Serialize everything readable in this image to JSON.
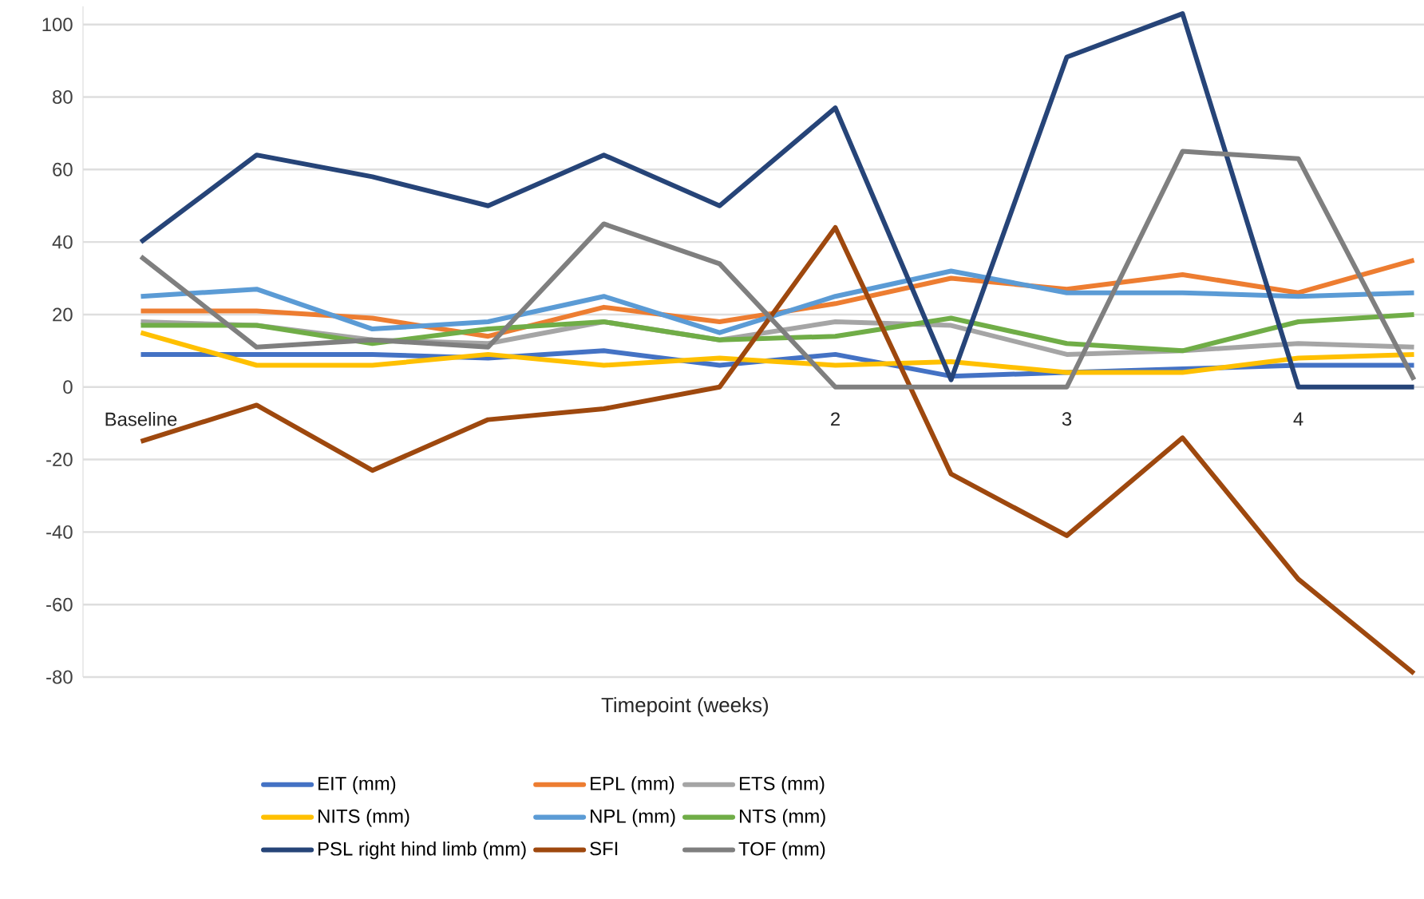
{
  "chart_data": {
    "type": "line",
    "xlabel": "Timepoint (weeks)",
    "categories": [
      "Baseline",
      null,
      null,
      null,
      null,
      null,
      "2",
      null,
      "3",
      null,
      "4",
      null
    ],
    "series": [
      {
        "name": "EIT (mm)",
        "color": "#4472c4",
        "values": [
          9,
          9,
          9,
          8,
          10,
          6,
          9,
          3,
          4,
          5,
          6,
          6
        ]
      },
      {
        "name": "EPL (mm)",
        "color": "#ed7d31",
        "values": [
          21,
          21,
          19,
          14,
          22,
          18,
          23,
          30,
          27,
          31,
          26,
          35
        ]
      },
      {
        "name": "ETS (mm)",
        "color": "#a5a5a5",
        "values": [
          18,
          17,
          13,
          12,
          18,
          13,
          18,
          17,
          9,
          10,
          12,
          11
        ]
      },
      {
        "name": "NITS (mm)",
        "color": "#ffc000",
        "values": [
          15,
          6,
          6,
          9,
          6,
          8,
          6,
          7,
          4,
          4,
          8,
          9
        ]
      },
      {
        "name": "NPL (mm)",
        "color": "#5b9bd5",
        "values": [
          25,
          27,
          16,
          18,
          25,
          15,
          25,
          32,
          26,
          26,
          25,
          26
        ]
      },
      {
        "name": "NTS (mm)",
        "color": "#70ad47",
        "values": [
          17,
          17,
          12,
          16,
          18,
          13,
          14,
          19,
          12,
          10,
          18,
          20
        ]
      },
      {
        "name": "PSL right hind limb (mm)",
        "color": "#264478",
        "values": [
          40,
          64,
          58,
          50,
          64,
          50,
          77,
          2,
          91,
          103,
          0,
          0
        ]
      },
      {
        "name": "SFI",
        "color": "#9e480e",
        "values": [
          -15,
          -5,
          -23,
          -9,
          -6,
          0,
          44,
          -24,
          -41,
          -14,
          -53,
          -79
        ]
      },
      {
        "name": "TOF (mm)",
        "color": "#7f7f7f",
        "values": [
          36,
          11,
          13,
          11,
          45,
          34,
          0,
          0,
          0,
          65,
          63,
          2
        ]
      }
    ],
    "ylim": [
      -80,
      105
    ],
    "yticks": [
      -80,
      -60,
      -40,
      -20,
      0,
      20,
      40,
      60,
      80,
      100
    ],
    "grid": "y",
    "legend": "bottom",
    "marker": "none",
    "line_style": "solid"
  }
}
